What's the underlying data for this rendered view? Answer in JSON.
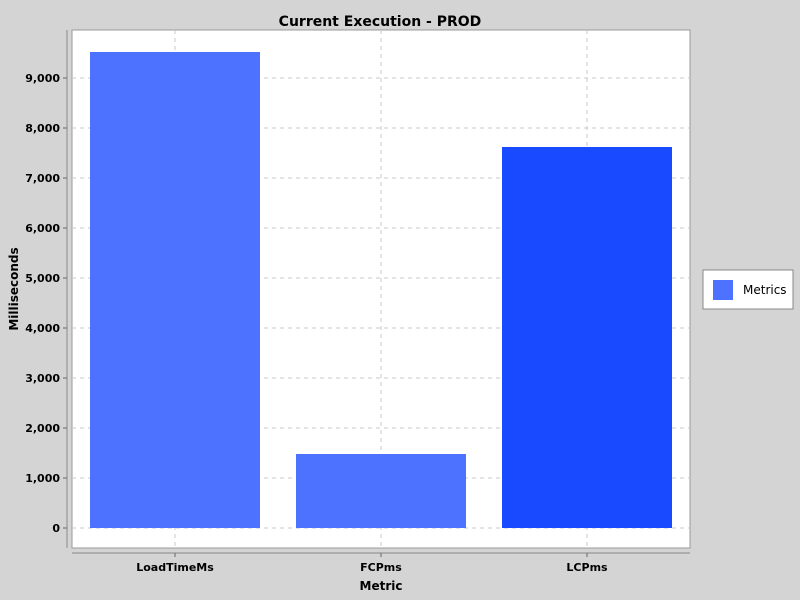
{
  "chart_data": {
    "type": "bar",
    "title": "Current Execution - PROD",
    "xlabel": "Metric",
    "ylabel": "Milliseconds",
    "categories": [
      "LoadTimeMs",
      "FCPms",
      "LCPms"
    ],
    "series": [
      {
        "name": "Metrics",
        "values": [
          9520,
          1480,
          7620
        ],
        "bar_colors": [
          "#4d72ff",
          "#4d72ff",
          "#1a4aff"
        ]
      }
    ],
    "ylim": [
      0,
      9900
    ],
    "yticks": [
      0,
      1000,
      2000,
      3000,
      4000,
      5000,
      6000,
      7000,
      8000,
      9000
    ],
    "ytick_labels": [
      "0",
      "1,000",
      "2,000",
      "3,000",
      "4,000",
      "5,000",
      "6,000",
      "7,000",
      "8,000",
      "9,000"
    ],
    "grid": true,
    "legend_position": "right",
    "colors": {
      "background": "#d4d4d4",
      "plot_background": "#ffffff",
      "gridline": "#c8c8c8",
      "legend_swatch": "#4d72ff"
    }
  }
}
